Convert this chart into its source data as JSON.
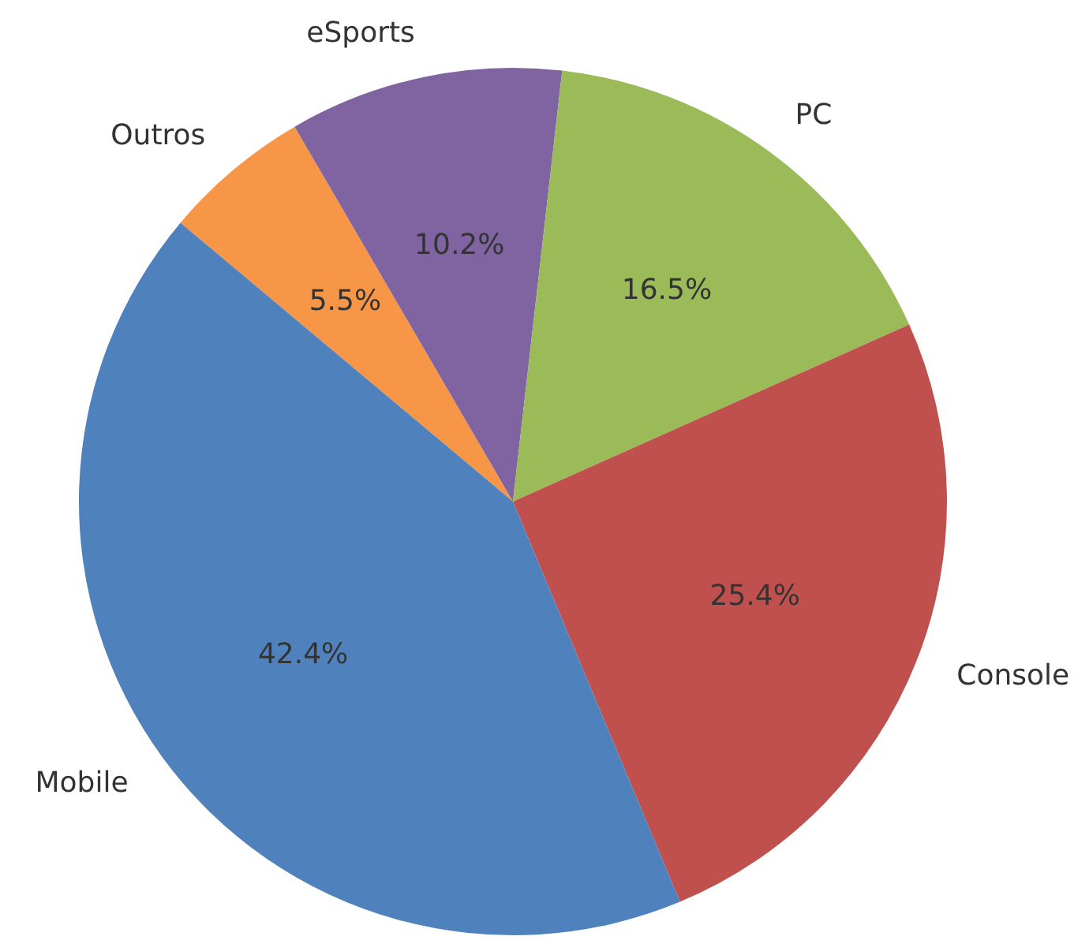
{
  "chart_data": {
    "type": "pie",
    "categories": [
      "Outros",
      "eSports",
      "PC",
      "Console",
      "Mobile"
    ],
    "values": [
      5.5,
      10.2,
      16.5,
      25.4,
      42.4
    ],
    "colors": [
      "#f79646",
      "#8064a2",
      "#9bbb59",
      "#c0504d",
      "#4f81bd"
    ],
    "value_labels": [
      "5.5%",
      "10.2%",
      "16.5%",
      "25.4%",
      "42.4%"
    ],
    "legend": false
  }
}
